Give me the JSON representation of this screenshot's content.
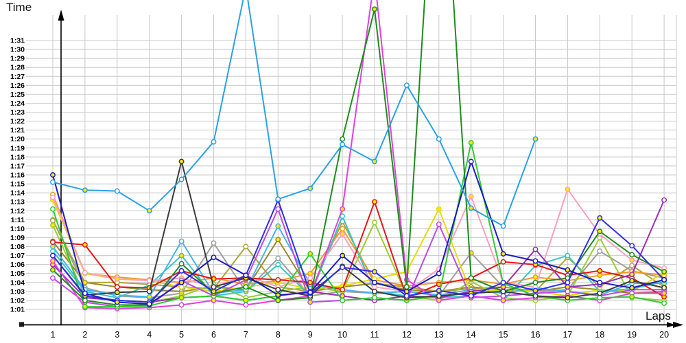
{
  "chart_data": {
    "type": "line",
    "title": "",
    "xlabel": "Laps",
    "ylabel": "Time",
    "x": [
      1,
      2,
      3,
      4,
      5,
      6,
      7,
      8,
      9,
      10,
      11,
      12,
      13,
      14,
      15,
      16,
      17,
      18,
      19,
      20
    ],
    "xticks": [
      "1",
      "2",
      "3",
      "4",
      "5",
      "6",
      "7",
      "8",
      "9",
      "10",
      "11",
      "12",
      "13",
      "14",
      "15",
      "16",
      "17",
      "18",
      "19",
      "20"
    ],
    "yticks": [
      "1:01",
      "1:02",
      "1:03",
      "1:04",
      "1:05",
      "1:06",
      "1:07",
      "1:08",
      "1:09",
      "1:10",
      "1:11",
      "1:12",
      "1:13",
      "1:14",
      "1:15",
      "1:16",
      "1:17",
      "1:18",
      "1:19",
      "1:20",
      "1:21",
      "1:22",
      "1:23",
      "1:24",
      "1:25",
      "1:26",
      "1:27",
      "1:28",
      "1:29",
      "1:30",
      "1:31"
    ],
    "ylim_seconds": [
      61,
      91
    ],
    "value_unit": "lap time in seconds (displayed as m:ss)",
    "grid": true,
    "legend_position": "none",
    "marker_fill_colors": [
      "#ffffff",
      "#ffe800"
    ],
    "gridline_color": "#c9c9c9",
    "axis_color": "#000000",
    "series": [
      {
        "name": "olive",
        "color": "#99882A",
        "values": [
          68.6,
          64.0,
          63.5,
          63.2,
          63.0,
          63.5,
          63.2,
          68.8,
          63.0,
          63.5,
          63.9,
          63.2,
          63.0,
          63.5,
          63.2,
          63.0,
          63.5,
          63.2,
          62.8,
          63.0
        ]
      },
      {
        "name": "gray",
        "color": "#9E9E9E",
        "values": [
          71.0,
          63.4,
          62.5,
          62.3,
          62.8,
          68.4,
          63.0,
          66.7,
          62.5,
          63.0,
          62.8,
          63.0,
          62.5,
          67.3,
          63.5,
          63.0,
          63.2,
          67.5,
          65.3,
          64.5
        ]
      },
      {
        "name": "dark-khaki",
        "color": "#AFA23C",
        "values": [
          70.9,
          64.0,
          64.0,
          63.8,
          63.5,
          63.3,
          68.0,
          63.5,
          63.0,
          70.8,
          63.9,
          63.5,
          63.0,
          63.3,
          63.5,
          63.0,
          66.8,
          63.5,
          65.9,
          63.5
        ]
      },
      {
        "name": "yellow-green",
        "color": "#9ACD32",
        "values": [
          70.4,
          62.5,
          62.0,
          61.8,
          62.5,
          63.8,
          62.3,
          63.0,
          63.5,
          63.0,
          70.7,
          62.5,
          62.0,
          64.1,
          62.3,
          62.0,
          62.5,
          69.0,
          62.3,
          62.0
        ]
      },
      {
        "name": "orange",
        "color": "#F29A29",
        "values": [
          73.8,
          65.0,
          64.6,
          64.3,
          64.0,
          64.5,
          63.8,
          64.2,
          65.0,
          70.0,
          64.3,
          63.6,
          64.0,
          64.3,
          63.8,
          64.6,
          64.2,
          64.8,
          65.2,
          64.8
        ]
      },
      {
        "name": "yellow",
        "color": "#E3DC00",
        "values": [
          73.2,
          65.0,
          64.4,
          64.2,
          63.5,
          63.0,
          63.5,
          64.0,
          63.3,
          63.6,
          64.4,
          65.2,
          72.2,
          62.8,
          63.2,
          63.0,
          62.5,
          63.2,
          63.0,
          65.1
        ]
      },
      {
        "name": "cyan",
        "color": "#34C6C6",
        "values": [
          67.5,
          63.0,
          62.3,
          63.7,
          67.0,
          62.5,
          63.0,
          66.0,
          62.5,
          71.4,
          63.0,
          62.5,
          62.3,
          62.5,
          62.0,
          65.9,
          67.0,
          63.0,
          63.3,
          64.1
        ]
      },
      {
        "name": "sky-blue-2",
        "color": "#45B4F0",
        "values": [
          68.0,
          63.2,
          62.6,
          62.4,
          68.6,
          62.8,
          63.2,
          70.3,
          63.8,
          63.2,
          62.8,
          63.0,
          62.6,
          63.2,
          62.8,
          63.4,
          63.0,
          62.6,
          63.9,
          63.9
        ]
      },
      {
        "name": "pink",
        "color": "#FF9EC0",
        "values": [
          73.5,
          65.1,
          64.4,
          64.2,
          64.5,
          63.5,
          64.8,
          63.5,
          64.5,
          69.4,
          63.5,
          63.0,
          65.5,
          73.6,
          64.0,
          63.5,
          74.4,
          69.4,
          66.5,
          65.6
        ]
      },
      {
        "name": "red",
        "color": "#E51616",
        "values": [
          68.5,
          68.2,
          63.5,
          63.4,
          65.3,
          64.4,
          64.5,
          64.3,
          64.0,
          63.2,
          73.0,
          62.3,
          63.8,
          64.5,
          66.3,
          66.0,
          64.8,
          65.3,
          64.5,
          62.4
        ]
      },
      {
        "name": "purple",
        "color": "#992FB3",
        "values": [
          66.0,
          62.3,
          62.0,
          61.8,
          62.3,
          62.5,
          62.0,
          62.5,
          63.0,
          62.5,
          62.0,
          62.5,
          62.3,
          63.0,
          63.5,
          67.7,
          63.5,
          63.8,
          64.9,
          73.2
        ]
      },
      {
        "name": "violet",
        "color": "#BB49E8",
        "values": [
          64.5,
          61.8,
          61.3,
          61.4,
          64.2,
          62.5,
          64.3,
          72.2,
          61.8,
          62.0,
          62.3,
          62.0,
          70.5,
          62.3,
          62.5,
          62.8,
          63.0,
          62.5,
          63.2,
          63.2
        ]
      },
      {
        "name": "magenta",
        "color": "#E33EE3",
        "values": [
          66.4,
          61.2,
          61.1,
          61.2,
          61.5,
          62.0,
          61.5,
          62.0,
          62.5,
          72.2,
          98.0,
          64.3,
          62.0,
          62.5,
          62.0,
          62.3,
          62.5,
          62.0,
          62.8,
          62.8
        ]
      },
      {
        "name": "lime-green",
        "color": "#2ECC2E",
        "values": [
          72.2,
          61.3,
          61.3,
          61.4,
          62.3,
          62.5,
          62.0,
          62.5,
          67.2,
          62.0,
          62.3,
          62.0,
          62.5,
          79.6,
          63.9,
          62.5,
          62.0,
          62.3,
          62.4,
          61.7
        ]
      },
      {
        "name": "forest-green",
        "color": "#1E8C1E",
        "values": [
          65.4,
          62.0,
          61.5,
          61.5,
          66.1,
          62.8,
          63.5,
          62.0,
          62.3,
          80.0,
          94.5,
          63.5,
          121.0,
          64.5,
          63.0,
          64.0,
          64.5,
          69.7,
          67.1,
          65.2
        ]
      },
      {
        "name": "black",
        "color": "#3C3C3C",
        "values": [
          67.0,
          62.6,
          62.9,
          63.0,
          77.5,
          63.5,
          64.5,
          63.2,
          62.5,
          65.8,
          63.0,
          62.3,
          62.5,
          62.8,
          63.0,
          62.5,
          62.3,
          62.8,
          64.2,
          63.4
        ]
      },
      {
        "name": "blue",
        "color": "#2E2EE8",
        "values": [
          67.0,
          62.5,
          62.0,
          61.8,
          65.3,
          63.0,
          64.8,
          73.2,
          62.8,
          65.7,
          65.2,
          62.5,
          63.1,
          62.5,
          64.0,
          63.1,
          64.0,
          71.2,
          68.1,
          64.3
        ]
      },
      {
        "name": "navy",
        "color": "#1A1AC4",
        "values": [
          76.0,
          62.8,
          61.8,
          61.6,
          64.0,
          66.8,
          64.8,
          62.6,
          62.9,
          67.0,
          64.0,
          63.0,
          65.0,
          77.5,
          67.2,
          66.4,
          65.4,
          64.0,
          63.4,
          64.3
        ]
      },
      {
        "name": "sky-blue",
        "color": "#29A1E6",
        "values": [
          75.2,
          74.3,
          74.2,
          72.0,
          75.5,
          79.7,
          97.0,
          73.3,
          74.5,
          79.4,
          77.5,
          86.0,
          80.0,
          72.3,
          70.3,
          80.0,
          null,
          null,
          null,
          null
        ]
      }
    ]
  }
}
